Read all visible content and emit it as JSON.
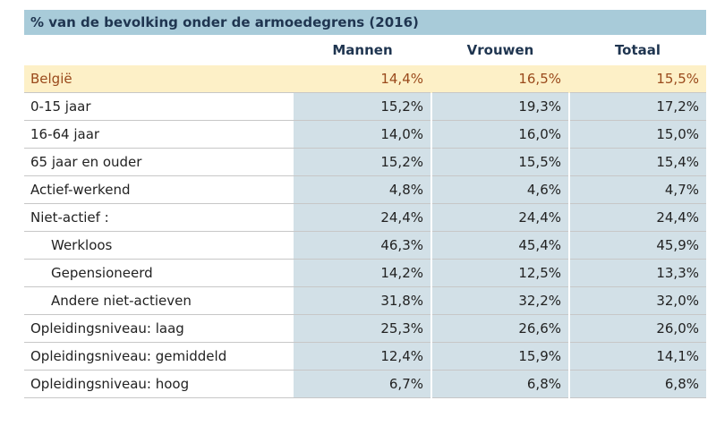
{
  "table": {
    "title": "% van de bevolking onder de armoedegrens (2016)",
    "columns": [
      "Mannen",
      "Vrouwen",
      "Totaal"
    ],
    "rows": [
      {
        "label": "België",
        "values": [
          "14,4%",
          "16,5%",
          "15,5%"
        ]
      },
      {
        "label": "0-15 jaar",
        "values": [
          "15,2%",
          "19,3%",
          "17,2%"
        ]
      },
      {
        "label": "16-64 jaar",
        "values": [
          "14,0%",
          "16,0%",
          "15,0%"
        ]
      },
      {
        "label": "65 jaar en ouder",
        "values": [
          "15,2%",
          "15,5%",
          "15,4%"
        ]
      },
      {
        "label": "Actief-werkend",
        "values": [
          "4,8%",
          "4,6%",
          "4,7%"
        ]
      },
      {
        "label": "Niet-actief :",
        "values": [
          "24,4%",
          "24,4%",
          "24,4%"
        ]
      },
      {
        "label": "Werkloos",
        "values": [
          "46,3%",
          "45,4%",
          "45,9%"
        ]
      },
      {
        "label": "Gepensioneerd",
        "values": [
          "14,2%",
          "12,5%",
          "13,3%"
        ]
      },
      {
        "label": "Andere niet-actieven",
        "values": [
          "31,8%",
          "32,2%",
          "32,0%"
        ]
      },
      {
        "label": "Opleidingsniveau: laag",
        "values": [
          "25,3%",
          "26,6%",
          "26,0%"
        ]
      },
      {
        "label": "Opleidingsniveau: gemiddeld",
        "values": [
          "12,4%",
          "15,9%",
          "14,1%"
        ]
      },
      {
        "label": "Opleidingsniveau: hoog",
        "values": [
          "6,7%",
          "6,8%",
          "6,8%"
        ]
      }
    ]
  },
  "colors": {
    "title_bg": "#a8cbd9",
    "header_text": "#1f3550",
    "highlight_bg": "#fdf0c7",
    "highlight_text": "#9a4a1c",
    "value_cell_bg": "#d2e0e7"
  }
}
